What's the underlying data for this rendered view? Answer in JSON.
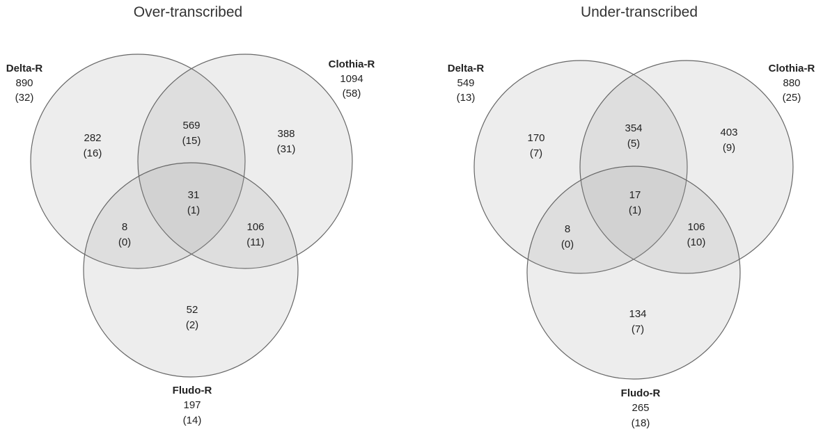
{
  "colors": {
    "circle_fill": "#9a9a9a",
    "circle_stroke": "#666666",
    "text": "#222222"
  },
  "diagrams": [
    {
      "title": "Over-transcribed",
      "sets": [
        {
          "name": "Delta-R",
          "total": "890",
          "sub": "(32)"
        },
        {
          "name": "Clothia-R",
          "total": "1094",
          "sub": "(58)"
        },
        {
          "name": "Fludo-R",
          "total": "197",
          "sub": "(14)"
        }
      ],
      "regions": {
        "delta_only": {
          "count": "282",
          "sub": "(16)"
        },
        "clothia_only": {
          "count": "388",
          "sub": "(31)"
        },
        "fludo_only": {
          "count": "52",
          "sub": "(2)"
        },
        "delta_clothia": {
          "count": "569",
          "sub": "(15)"
        },
        "delta_fludo": {
          "count": "8",
          "sub": "(0)"
        },
        "clothia_fludo": {
          "count": "106",
          "sub": "(11)"
        },
        "all_three": {
          "count": "31",
          "sub": "(1)"
        }
      }
    },
    {
      "title": "Under-transcribed",
      "sets": [
        {
          "name": "Delta-R",
          "total": "549",
          "sub": "(13)"
        },
        {
          "name": "Clothia-R",
          "total": "880",
          "sub": "(25)"
        },
        {
          "name": "Fludo-R",
          "total": "265",
          "sub": "(18)"
        }
      ],
      "regions": {
        "delta_only": {
          "count": "170",
          "sub": "(7)"
        },
        "clothia_only": {
          "count": "403",
          "sub": "(9)"
        },
        "fludo_only": {
          "count": "134",
          "sub": "(7)"
        },
        "delta_clothia": {
          "count": "354",
          "sub": "(5)"
        },
        "delta_fludo": {
          "count": "8",
          "sub": "(0)"
        },
        "clothia_fludo": {
          "count": "106",
          "sub": "(10)"
        },
        "all_three": {
          "count": "17",
          "sub": "(1)"
        }
      }
    }
  ]
}
